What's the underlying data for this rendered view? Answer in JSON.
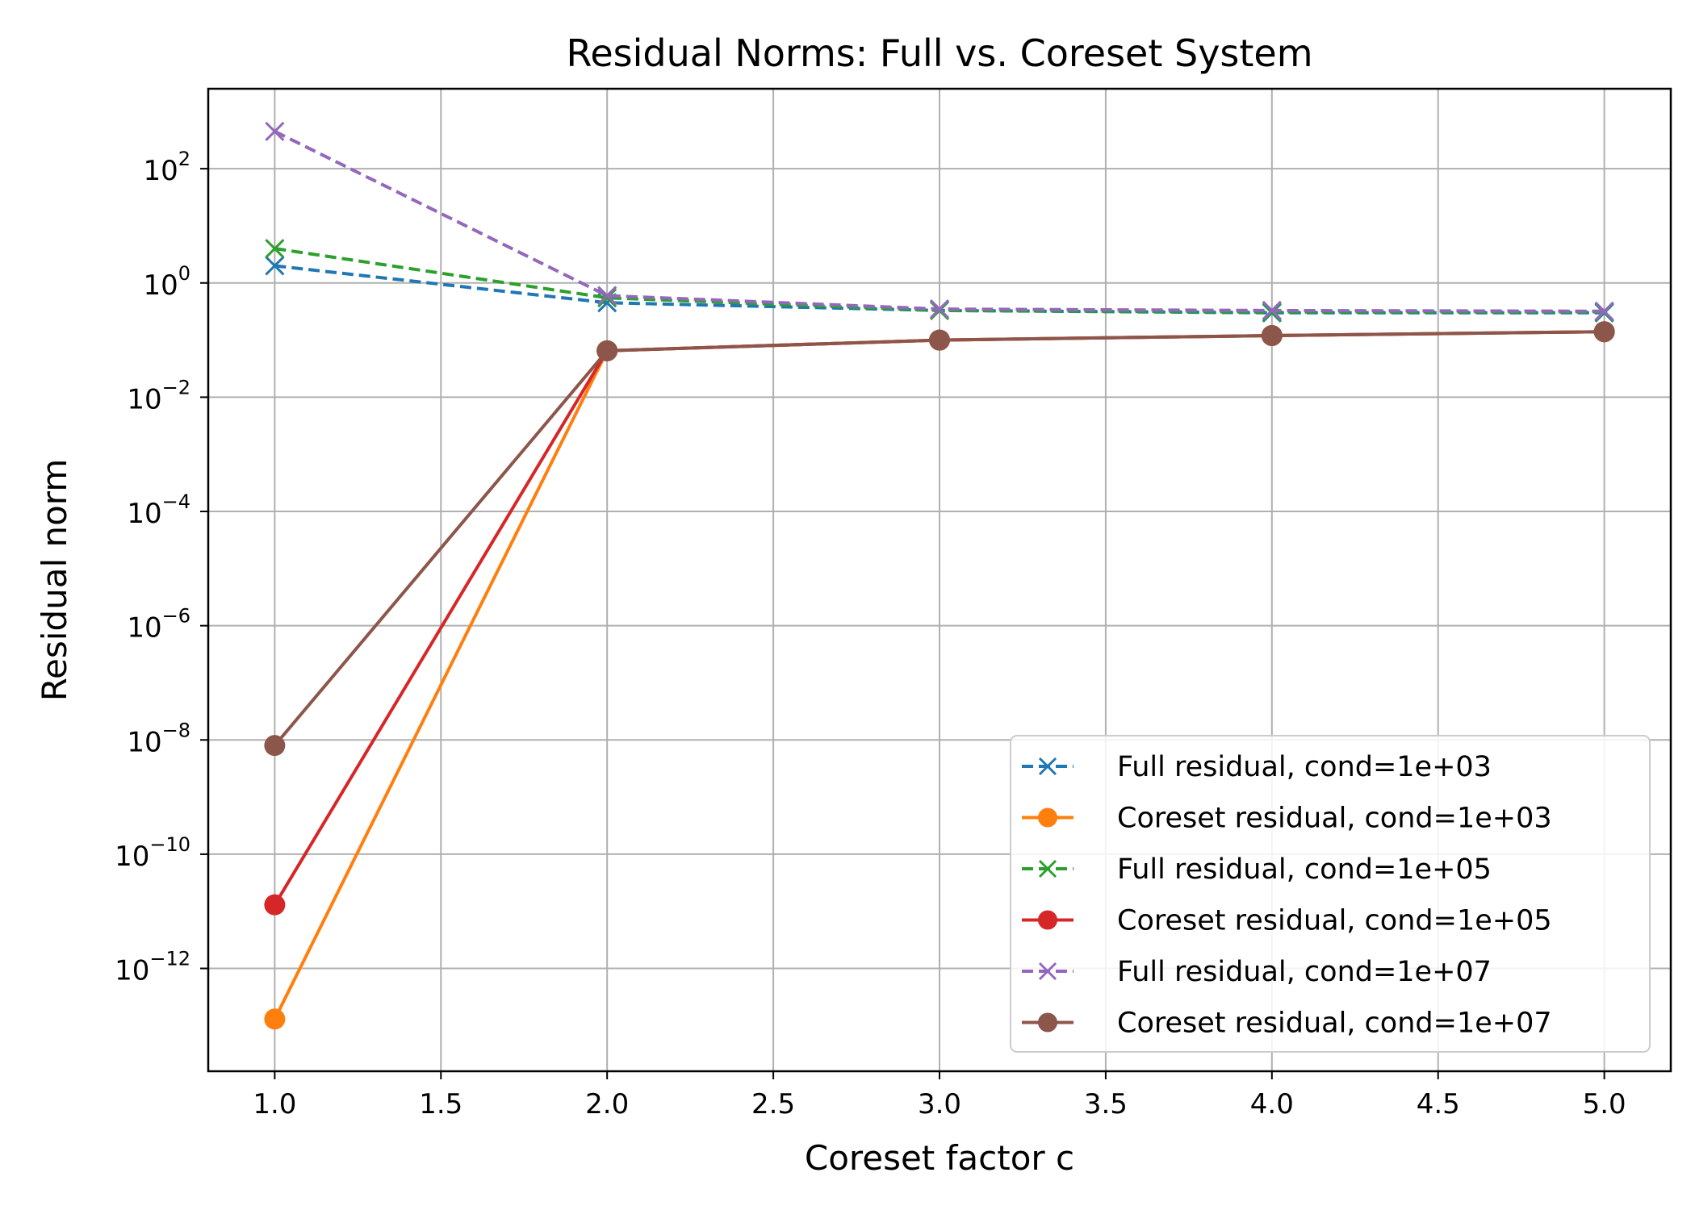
{
  "chart_data": {
    "type": "line",
    "title": "Residual Norms: Full vs. Coreset System",
    "xlabel": "Coreset factor c",
    "ylabel": "Residual norm",
    "yscale": "log",
    "xlim": [
      0.8,
      5.2
    ],
    "ylim_log10": [
      -13.8,
      3.4
    ],
    "grid": true,
    "legend_position": "lower right",
    "x": [
      1.0,
      2.0,
      3.0,
      4.0,
      5.0
    ],
    "x_ticks": [
      1.0,
      1.5,
      2.0,
      2.5,
      3.0,
      3.5,
      4.0,
      4.5,
      5.0
    ],
    "x_tick_labels": [
      "1.0",
      "1.5",
      "2.0",
      "2.5",
      "3.0",
      "3.5",
      "4.0",
      "4.5",
      "5.0"
    ],
    "y_ticks_log10": [
      2,
      0,
      -2,
      -4,
      -6,
      -8,
      -10,
      -12
    ],
    "y_tick_exponents": [
      "2",
      "0",
      "−2",
      "−4",
      "−6",
      "−8",
      "−10",
      "−12"
    ],
    "y_tick_base": "10",
    "series": [
      {
        "name": "Full residual, cond=1e+03",
        "color": "#1f77b4",
        "style": "dashed",
        "marker": "x",
        "values": [
          2.0,
          0.45,
          0.33,
          0.3,
          0.3
        ]
      },
      {
        "name": "Coreset residual, cond=1e+03",
        "color": "#ff7f0e",
        "style": "solid",
        "marker": "o",
        "values": [
          1.3e-13,
          0.065,
          0.1,
          0.12,
          0.14
        ]
      },
      {
        "name": "Full residual, cond=1e+05",
        "color": "#2ca02c",
        "style": "dashed",
        "marker": "x",
        "values": [
          4.0,
          0.55,
          0.33,
          0.31,
          0.31
        ]
      },
      {
        "name": "Coreset residual, cond=1e+05",
        "color": "#d62728",
        "style": "solid",
        "marker": "o",
        "values": [
          1.3e-11,
          0.065,
          0.1,
          0.12,
          0.14
        ]
      },
      {
        "name": "Full residual, cond=1e+07",
        "color": "#9467bd",
        "style": "dashed",
        "marker": "x",
        "values": [
          450,
          0.6,
          0.35,
          0.33,
          0.32
        ]
      },
      {
        "name": "Coreset residual, cond=1e+07",
        "color": "#8c564b",
        "style": "solid",
        "marker": "o",
        "values": [
          8e-09,
          0.065,
          0.1,
          0.12,
          0.14
        ]
      }
    ]
  }
}
